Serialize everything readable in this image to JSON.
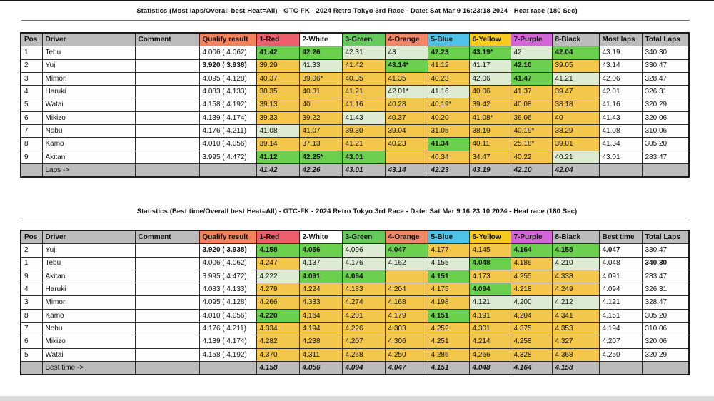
{
  "colors": {
    "header_gray": "#bcbcbc",
    "qualify_orange": "#f4825c",
    "heat_red": "#ee5f6d",
    "heat_white": "#ffffff",
    "heat_green": "#66cb5d",
    "heat_orange": "#f18767",
    "heat_blue": "#4fc2e8",
    "heat_yellow": "#f7ca1c",
    "heat_purple": "#d566d9",
    "cell_yellow": "#f3c74b",
    "cell_best_green": "#6bd04e",
    "cell_light_green": "#dcebd1",
    "footer_gray": "#bcbcbc"
  },
  "tables": [
    {
      "title": "Statistics (Most laps/Overall best Heat=All) - GTC-FK - 2024 Retro Tokyo 3rd Race - Date: Sat Mar 9 16:23:18 2024 - Heat race (180 Sec)",
      "columns": [
        {
          "label": "Pos",
          "bg": "#bcbcbc"
        },
        {
          "label": "Driver",
          "bg": "#bcbcbc"
        },
        {
          "label": "Comment",
          "bg": "#bcbcbc"
        },
        {
          "label": "Qualify result",
          "bg": "#f4825c"
        },
        {
          "label": "1-Red",
          "bg": "#ee5f6d"
        },
        {
          "label": "2-White",
          "bg": "#ffffff"
        },
        {
          "label": "3-Green",
          "bg": "#66cb5d"
        },
        {
          "label": "4-Orange",
          "bg": "#f18767"
        },
        {
          "label": "5-Blue",
          "bg": "#4fc2e8"
        },
        {
          "label": "6-Yellow",
          "bg": "#f7ca1c"
        },
        {
          "label": "7-Purple",
          "bg": "#d566d9"
        },
        {
          "label": "8-Black",
          "bg": "#bcbcbc"
        },
        {
          "label": "Most laps",
          "bg": "#bcbcbc"
        },
        {
          "label": "Total Laps",
          "bg": "#bcbcbc"
        }
      ],
      "rows": [
        {
          "pos": "1",
          "driver": "Tebu",
          "comment": "",
          "qualify": "4.006 ( 4.062)",
          "qbold": false,
          "heats": [
            [
              "41.42",
              "g"
            ],
            [
              "42.26",
              "g"
            ],
            [
              "42.31",
              "l"
            ],
            [
              "43",
              "l"
            ],
            [
              "42.23",
              "g"
            ],
            [
              "43.19*",
              "g"
            ],
            [
              "42",
              "l"
            ],
            [
              "42.04",
              "g"
            ]
          ],
          "sum": "43.19",
          "sbold": false,
          "total": "340.30",
          "tbold": false
        },
        {
          "pos": "2",
          "driver": "Yuji",
          "comment": "",
          "qualify": "3.920 ( 3.938)",
          "qbold": true,
          "heats": [
            [
              "39.29",
              "y"
            ],
            [
              "41.33",
              "l"
            ],
            [
              "41.42",
              "y"
            ],
            [
              "43.14*",
              "g"
            ],
            [
              "41.12",
              "y"
            ],
            [
              "41.17",
              "l"
            ],
            [
              "42.10",
              "g"
            ],
            [
              "39.05",
              "y"
            ]
          ],
          "sum": "43.14",
          "sbold": false,
          "total": "330.47",
          "tbold": false
        },
        {
          "pos": "3",
          "driver": "Mimori",
          "comment": "",
          "qualify": "4.095 ( 4.128)",
          "qbold": false,
          "heats": [
            [
              "40.37",
              "y"
            ],
            [
              "39.06*",
              "y"
            ],
            [
              "40.35",
              "y"
            ],
            [
              "41.35",
              "y"
            ],
            [
              "40.23",
              "y"
            ],
            [
              "42.06",
              "l"
            ],
            [
              "41.47",
              "g"
            ],
            [
              "41.21",
              "l"
            ]
          ],
          "sum": "42.06",
          "sbold": false,
          "total": "328.47",
          "tbold": false
        },
        {
          "pos": "4",
          "driver": "Haruki",
          "comment": "",
          "qualify": "4.083 ( 4.133)",
          "qbold": false,
          "heats": [
            [
              "38.35",
              "y"
            ],
            [
              "40.31",
              "y"
            ],
            [
              "41.21",
              "y"
            ],
            [
              "42.01*",
              "l"
            ],
            [
              "41.16",
              "l"
            ],
            [
              "40.06",
              "y"
            ],
            [
              "41.37",
              "y"
            ],
            [
              "39.47",
              "y"
            ]
          ],
          "sum": "42.01",
          "sbold": false,
          "total": "326.31",
          "tbold": false
        },
        {
          "pos": "5",
          "driver": "Watai",
          "comment": "",
          "qualify": "4.158 ( 4.192)",
          "qbold": false,
          "heats": [
            [
              "39.13",
              "y"
            ],
            [
              "40",
              "y"
            ],
            [
              "41.16",
              "y"
            ],
            [
              "40.28",
              "y"
            ],
            [
              "40.19*",
              "y"
            ],
            [
              "39.42",
              "y"
            ],
            [
              "40.08",
              "y"
            ],
            [
              "38.18",
              "y"
            ]
          ],
          "sum": "41.16",
          "sbold": false,
          "total": "320.29",
          "tbold": false
        },
        {
          "pos": "6",
          "driver": "Mikizo",
          "comment": "",
          "qualify": "4.139 ( 4.174)",
          "qbold": false,
          "heats": [
            [
              "39.33",
              "y"
            ],
            [
              "39.22",
              "y"
            ],
            [
              "41.43",
              "l"
            ],
            [
              "40.37",
              "y"
            ],
            [
              "40.20",
              "y"
            ],
            [
              "41.08*",
              "y"
            ],
            [
              "36.06",
              "y"
            ],
            [
              "40",
              "y"
            ]
          ],
          "sum": "41.43",
          "sbold": false,
          "total": "320.06",
          "tbold": false
        },
        {
          "pos": "7",
          "driver": "Nobu",
          "comment": "",
          "qualify": "4.176 ( 4.211)",
          "qbold": false,
          "heats": [
            [
              "41.08",
              "l"
            ],
            [
              "41.07",
              "y"
            ],
            [
              "39.30",
              "y"
            ],
            [
              "39.04",
              "y"
            ],
            [
              "31.05",
              "y"
            ],
            [
              "38.19",
              "y"
            ],
            [
              "40.19*",
              "y"
            ],
            [
              "38.29",
              "y"
            ]
          ],
          "sum": "41.08",
          "sbold": false,
          "total": "310.06",
          "tbold": false
        },
        {
          "pos": "8",
          "driver": "Kamo",
          "comment": "",
          "qualify": "4.010 ( 4.056)",
          "qbold": false,
          "heats": [
            [
              "39.14",
              "y"
            ],
            [
              "37.13",
              "y"
            ],
            [
              "41.21",
              "y"
            ],
            [
              "40.23",
              "y"
            ],
            [
              "41.34",
              "g"
            ],
            [
              "40.11",
              "y"
            ],
            [
              "25.18*",
              "y"
            ],
            [
              "39.01",
              "y"
            ]
          ],
          "sum": "41.34",
          "sbold": false,
          "total": "305.20",
          "tbold": false
        },
        {
          "pos": "9",
          "driver": "Akitani",
          "comment": "",
          "qualify": "3.995 ( 4.472)",
          "qbold": false,
          "heats": [
            [
              "41.12",
              "g"
            ],
            [
              "42.25*",
              "g"
            ],
            [
              "43.01",
              "g"
            ],
            [
              "",
              "y"
            ],
            [
              "40.34",
              "y"
            ],
            [
              "34.47",
              "y"
            ],
            [
              "40.22",
              "y"
            ],
            [
              "40.21",
              "l"
            ]
          ],
          "sum": "43.01",
          "sbold": false,
          "total": "283.47",
          "tbold": false
        }
      ],
      "footer": {
        "label": "Laps ->",
        "values": [
          "41.42",
          "42.26",
          "43.01",
          "43.14",
          "42.23",
          "43.19",
          "42.10",
          "42.04"
        ]
      }
    },
    {
      "title": "Statistics (Best time/Overall best Heat=All) - GTC-FK - 2024 Retro Tokyo 3rd Race - Date: Sat Mar 9 16:23:10 2024 - Heat race (180 Sec)",
      "columns": [
        {
          "label": "Pos",
          "bg": "#bcbcbc"
        },
        {
          "label": "Driver",
          "bg": "#bcbcbc"
        },
        {
          "label": "Comment",
          "bg": "#bcbcbc"
        },
        {
          "label": "Qualify result",
          "bg": "#f4825c"
        },
        {
          "label": "1-Red",
          "bg": "#ee5f6d"
        },
        {
          "label": "2-White",
          "bg": "#ffffff"
        },
        {
          "label": "3-Green",
          "bg": "#66cb5d"
        },
        {
          "label": "4-Orange",
          "bg": "#f18767"
        },
        {
          "label": "5-Blue",
          "bg": "#4fc2e8"
        },
        {
          "label": "6-Yellow",
          "bg": "#f7ca1c"
        },
        {
          "label": "7-Purple",
          "bg": "#d566d9"
        },
        {
          "label": "8-Black",
          "bg": "#bcbcbc"
        },
        {
          "label": "Best time",
          "bg": "#bcbcbc"
        },
        {
          "label": "Total Laps",
          "bg": "#bcbcbc"
        }
      ],
      "rows": [
        {
          "pos": "2",
          "driver": "Yuji",
          "comment": "",
          "qualify": "3.920 ( 3.938)",
          "qbold": true,
          "heats": [
            [
              "4.158",
              "g"
            ],
            [
              "4.056",
              "g"
            ],
            [
              "4.096",
              "l"
            ],
            [
              "4.047",
              "g"
            ],
            [
              "4.177",
              "y"
            ],
            [
              "4.145",
              "y"
            ],
            [
              "4.164",
              "g"
            ],
            [
              "4.158",
              "g"
            ]
          ],
          "sum": "4.047",
          "sbold": true,
          "total": "330.47",
          "tbold": false
        },
        {
          "pos": "1",
          "driver": "Tebu",
          "comment": "",
          "qualify": "4.006 ( 4.062)",
          "qbold": false,
          "heats": [
            [
              "4.247",
              "y"
            ],
            [
              "4.137",
              "l"
            ],
            [
              "4.176",
              "l"
            ],
            [
              "4.162",
              "l"
            ],
            [
              "4.155",
              "l"
            ],
            [
              "4.048",
              "g"
            ],
            [
              "4.186",
              "y"
            ],
            [
              "4.210",
              "l"
            ]
          ],
          "sum": "4.048",
          "sbold": false,
          "total": "340.30",
          "tbold": true
        },
        {
          "pos": "9",
          "driver": "Akitani",
          "comment": "",
          "qualify": "3.995 ( 4.472)",
          "qbold": false,
          "heats": [
            [
              "4.222",
              "l"
            ],
            [
              "4.091",
              "g"
            ],
            [
              "4.094",
              "g"
            ],
            [
              "",
              "y"
            ],
            [
              "4.151",
              "g"
            ],
            [
              "4.173",
              "y"
            ],
            [
              "4.255",
              "y"
            ],
            [
              "4.338",
              "y"
            ]
          ],
          "sum": "4.091",
          "sbold": false,
          "total": "283.47",
          "tbold": false
        },
        {
          "pos": "4",
          "driver": "Haruki",
          "comment": "",
          "qualify": "4.083 ( 4.133)",
          "qbold": false,
          "heats": [
            [
              "4.279",
              "y"
            ],
            [
              "4.224",
              "y"
            ],
            [
              "4.183",
              "y"
            ],
            [
              "4.204",
              "y"
            ],
            [
              "4.175",
              "y"
            ],
            [
              "4.094",
              "g"
            ],
            [
              "4.218",
              "y"
            ],
            [
              "4.249",
              "y"
            ]
          ],
          "sum": "4.094",
          "sbold": false,
          "total": "326.31",
          "tbold": false
        },
        {
          "pos": "3",
          "driver": "Mimori",
          "comment": "",
          "qualify": "4.095 ( 4.128)",
          "qbold": false,
          "heats": [
            [
              "4.266",
              "y"
            ],
            [
              "4.333",
              "y"
            ],
            [
              "4.274",
              "y"
            ],
            [
              "4.168",
              "y"
            ],
            [
              "4.198",
              "y"
            ],
            [
              "4.121",
              "l"
            ],
            [
              "4.200",
              "l"
            ],
            [
              "4.212",
              "l"
            ]
          ],
          "sum": "4.121",
          "sbold": false,
          "total": "328.47",
          "tbold": false
        },
        {
          "pos": "8",
          "driver": "Kamo",
          "comment": "",
          "qualify": "4.010 ( 4.056)",
          "qbold": false,
          "heats": [
            [
              "4.220",
              "g"
            ],
            [
              "4.164",
              "y"
            ],
            [
              "4.201",
              "y"
            ],
            [
              "4.179",
              "y"
            ],
            [
              "4.151",
              "g"
            ],
            [
              "4.191",
              "y"
            ],
            [
              "4.204",
              "y"
            ],
            [
              "4.341",
              "y"
            ]
          ],
          "sum": "4.151",
          "sbold": false,
          "total": "305.20",
          "tbold": false
        },
        {
          "pos": "7",
          "driver": "Nobu",
          "comment": "",
          "qualify": "4.176 ( 4.211)",
          "qbold": false,
          "heats": [
            [
              "4.334",
              "y"
            ],
            [
              "4.194",
              "y"
            ],
            [
              "4.226",
              "y"
            ],
            [
              "4.303",
              "y"
            ],
            [
              "4.252",
              "y"
            ],
            [
              "4.301",
              "y"
            ],
            [
              "4.375",
              "y"
            ],
            [
              "4.353",
              "y"
            ]
          ],
          "sum": "4.194",
          "sbold": false,
          "total": "310.06",
          "tbold": false
        },
        {
          "pos": "6",
          "driver": "Mikizo",
          "comment": "",
          "qualify": "4.139 ( 4.174)",
          "qbold": false,
          "heats": [
            [
              "4.282",
              "y"
            ],
            [
              "4.238",
              "y"
            ],
            [
              "4.207",
              "y"
            ],
            [
              "4.306",
              "y"
            ],
            [
              "4.251",
              "y"
            ],
            [
              "4.214",
              "y"
            ],
            [
              "4.258",
              "y"
            ],
            [
              "4.327",
              "y"
            ]
          ],
          "sum": "4.207",
          "sbold": false,
          "total": "320.06",
          "tbold": false
        },
        {
          "pos": "5",
          "driver": "Watai",
          "comment": "",
          "qualify": "4.158 ( 4.192)",
          "qbold": false,
          "heats": [
            [
              "4.370",
              "y"
            ],
            [
              "4.311",
              "y"
            ],
            [
              "4.268",
              "y"
            ],
            [
              "4.250",
              "y"
            ],
            [
              "4.286",
              "y"
            ],
            [
              "4.266",
              "y"
            ],
            [
              "4.328",
              "y"
            ],
            [
              "4.368",
              "y"
            ]
          ],
          "sum": "4.250",
          "sbold": false,
          "total": "320.29",
          "tbold": false
        }
      ],
      "footer": {
        "label": "Best time ->",
        "values": [
          "4.158",
          "4.056",
          "4.094",
          "4.047",
          "4.151",
          "4.048",
          "4.164",
          "4.158"
        ]
      }
    }
  ]
}
